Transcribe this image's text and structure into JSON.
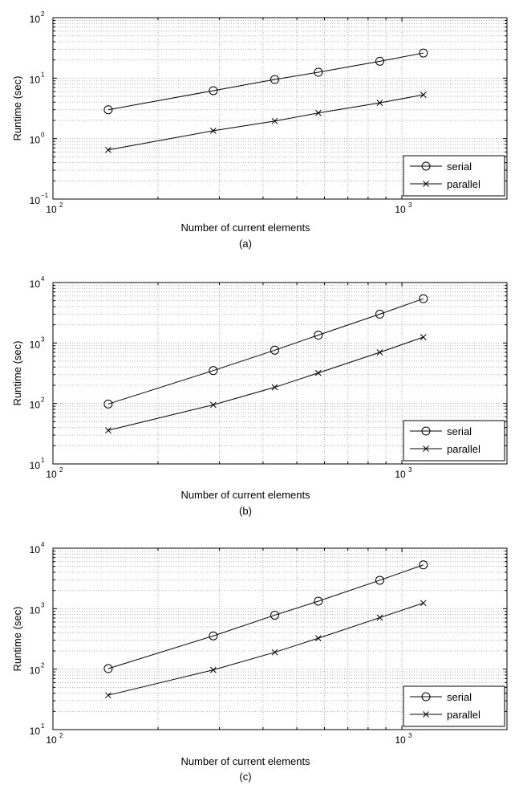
{
  "chart_data": [
    {
      "type": "line",
      "panel_label": "(a)",
      "xlabel": "Number of current elements",
      "ylabel": "Runtime (sec)",
      "xscale": "log",
      "yscale": "log",
      "xlim": [
        100,
        2000
      ],
      "ylim": [
        0.1,
        100
      ],
      "x_ticks": [
        {
          "base": "10",
          "exp": "2",
          "value": 100
        },
        {
          "base": "10",
          "exp": "3",
          "value": 1000
        }
      ],
      "y_ticks": [
        {
          "base": "10",
          "exp": "−1",
          "value": 0.1
        },
        {
          "base": "10",
          "exp": "0",
          "value": 1
        },
        {
          "base": "10",
          "exp": "1",
          "value": 10
        },
        {
          "base": "10",
          "exp": "2",
          "value": 100
        }
      ],
      "grid": true,
      "legend_position": "bottom-right",
      "x": [
        144,
        288,
        432,
        576,
        864,
        1152
      ],
      "series": [
        {
          "name": "serial",
          "marker": "circle",
          "values": [
            3.0,
            6.2,
            9.5,
            12.5,
            19.0,
            26.0
          ]
        },
        {
          "name": "parallel",
          "marker": "x",
          "values": [
            0.65,
            1.35,
            1.95,
            2.65,
            3.9,
            5.3
          ]
        }
      ]
    },
    {
      "type": "line",
      "panel_label": "(b)",
      "xlabel": "Number of current elements",
      "ylabel": "Runtime (sec)",
      "xscale": "log",
      "yscale": "log",
      "xlim": [
        100,
        2000
      ],
      "ylim": [
        10,
        10000
      ],
      "x_ticks": [
        {
          "base": "10",
          "exp": "2",
          "value": 100
        },
        {
          "base": "10",
          "exp": "3",
          "value": 1000
        }
      ],
      "y_ticks": [
        {
          "base": "10",
          "exp": "1",
          "value": 10
        },
        {
          "base": "10",
          "exp": "2",
          "value": 100
        },
        {
          "base": "10",
          "exp": "3",
          "value": 1000
        },
        {
          "base": "10",
          "exp": "4",
          "value": 10000
        }
      ],
      "grid": true,
      "legend_position": "bottom-right",
      "x": [
        144,
        288,
        432,
        576,
        864,
        1152
      ],
      "series": [
        {
          "name": "serial",
          "marker": "circle",
          "values": [
            98,
            350,
            760,
            1350,
            3000,
            5400
          ]
        },
        {
          "name": "parallel",
          "marker": "x",
          "values": [
            36,
            95,
            185,
            320,
            700,
            1250
          ]
        }
      ]
    },
    {
      "type": "line",
      "panel_label": "(c)",
      "xlabel": "Number of current elements",
      "ylabel": "Runtime (sec)",
      "xscale": "log",
      "yscale": "log",
      "xlim": [
        100,
        2000
      ],
      "ylim": [
        10,
        10000
      ],
      "x_ticks": [
        {
          "base": "10",
          "exp": "2",
          "value": 100
        },
        {
          "base": "10",
          "exp": "3",
          "value": 1000
        }
      ],
      "y_ticks": [
        {
          "base": "10",
          "exp": "1",
          "value": 10
        },
        {
          "base": "10",
          "exp": "2",
          "value": 100
        },
        {
          "base": "10",
          "exp": "3",
          "value": 1000
        },
        {
          "base": "10",
          "exp": "4",
          "value": 10000
        }
      ],
      "grid": true,
      "legend_position": "bottom-right",
      "x": [
        144,
        288,
        432,
        576,
        864,
        1152
      ],
      "series": [
        {
          "name": "serial",
          "marker": "circle",
          "values": [
            102,
            355,
            780,
            1330,
            2950,
            5300
          ]
        },
        {
          "name": "parallel",
          "marker": "x",
          "values": [
            37,
            97,
            190,
            325,
            710,
            1240
          ]
        }
      ]
    }
  ],
  "colors": {
    "line": "#000000",
    "grid": "#b0b0b0",
    "background": "#ffffff"
  }
}
